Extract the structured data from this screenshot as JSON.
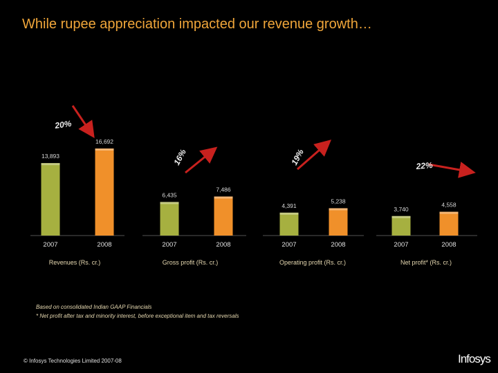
{
  "title": "While rupee appreciation impacted our revenue growth…",
  "chart_data": [
    {
      "type": "bar",
      "title": "Revenues (Rs. cr.)",
      "categories": [
        "2007",
        "2008"
      ],
      "values": [
        13893,
        16692
      ],
      "labels": [
        "13,893",
        "16,692"
      ],
      "growth": "20%",
      "colors": [
        "#a6b040",
        "#f0902a"
      ]
    },
    {
      "type": "bar",
      "title": "Gross profit (Rs. cr.)",
      "categories": [
        "2007",
        "2008"
      ],
      "values": [
        6435,
        7486
      ],
      "labels": [
        "6,435",
        "7,486"
      ],
      "growth": "16%",
      "colors": [
        "#a6b040",
        "#f0902a"
      ]
    },
    {
      "type": "bar",
      "title": "Operating profit (Rs. cr.)",
      "categories": [
        "2007",
        "2008"
      ],
      "values": [
        4391,
        5238
      ],
      "labels": [
        "4,391",
        "5,238"
      ],
      "growth": "19%",
      "colors": [
        "#a6b040",
        "#f0902a"
      ]
    },
    {
      "type": "bar",
      "title": "Net profit* (Rs. cr.)",
      "categories": [
        "2007",
        "2008"
      ],
      "values": [
        3740,
        4558
      ],
      "labels": [
        "3,740",
        "4,558"
      ],
      "growth": "22%",
      "colors": [
        "#a6b040",
        "#f0902a"
      ]
    }
  ],
  "footnotes": {
    "line1": "Based on consolidated Indian GAAP Financials",
    "line2": "* Net profit after tax and minority interest, before exceptional item and tax reversals"
  },
  "copyright": "© Infosys Technologies Limited 2007-08",
  "logo": "Infosys",
  "colors": {
    "title": "#f0a63a",
    "bar_2007": "#a6b040",
    "bar_2008": "#f0902a",
    "arrow": "#c8211e"
  }
}
